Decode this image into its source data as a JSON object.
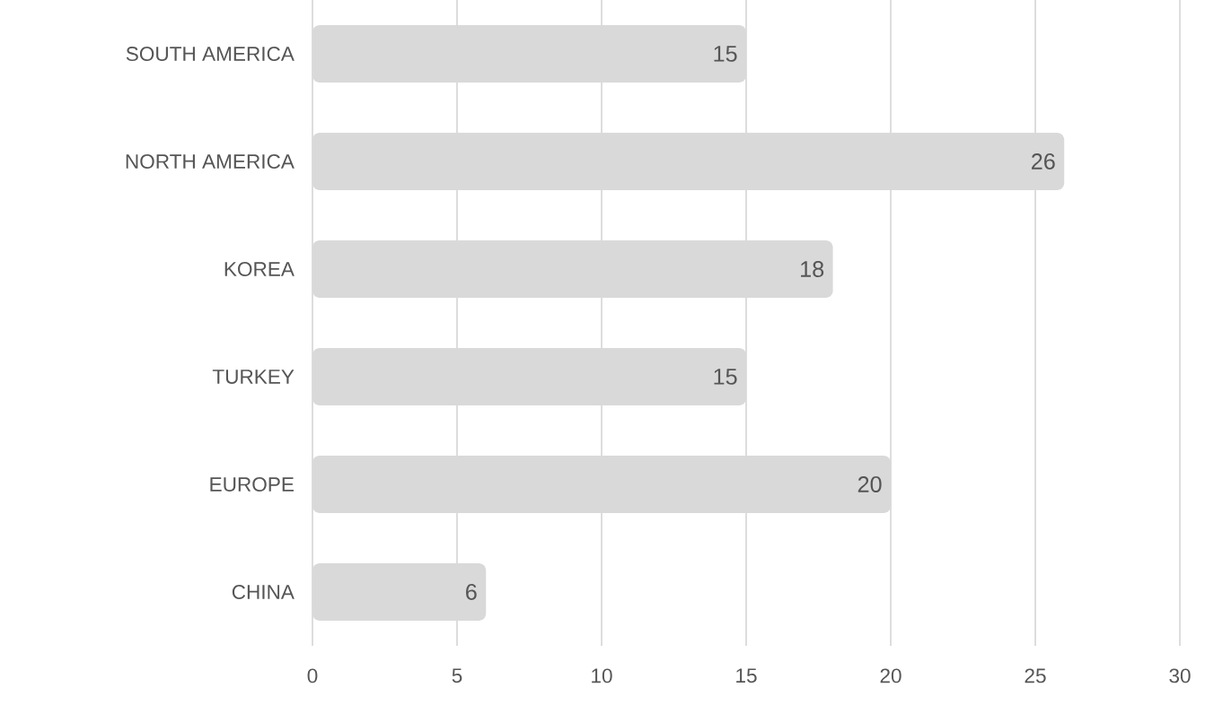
{
  "chart_data": {
    "type": "bar",
    "orientation": "horizontal",
    "categories": [
      "SOUTH AMERICA",
      "NORTH AMERICA",
      "KOREA",
      "TURKEY",
      "EUROPE",
      "CHINA"
    ],
    "values": [
      15,
      26,
      18,
      15,
      20,
      6
    ],
    "color": "#d9d9d9",
    "xlim": [
      0,
      30
    ],
    "xticks": [
      0,
      5,
      10,
      15,
      20,
      25,
      30
    ],
    "grid": "x",
    "data_labels": true
  }
}
